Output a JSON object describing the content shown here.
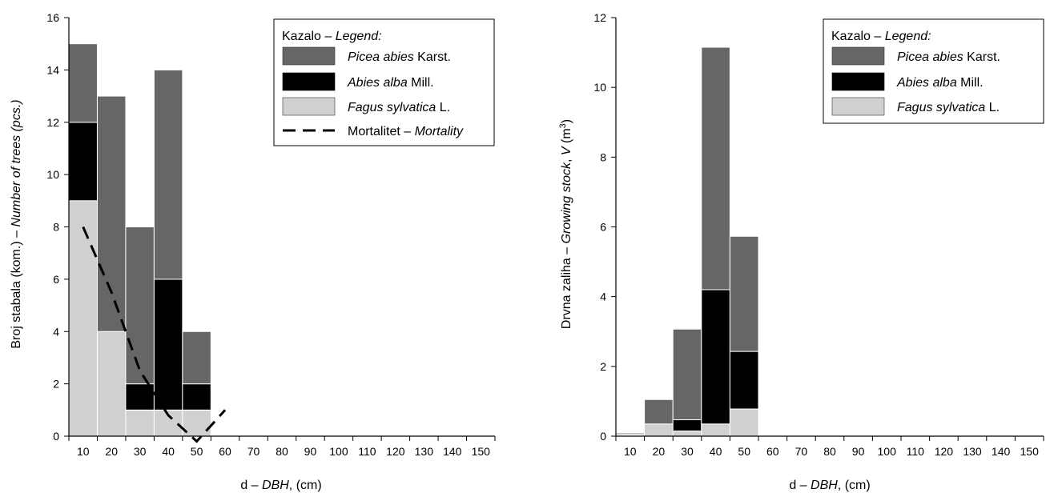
{
  "chart_data": [
    {
      "type": "bar",
      "stacked": true,
      "categories": [
        "10",
        "20",
        "30",
        "40",
        "50",
        "60",
        "70",
        "80",
        "90",
        "100",
        "110",
        "120",
        "130",
        "140",
        "150"
      ],
      "series": [
        {
          "name": "Fagus sylvatica L.",
          "color": "#d0d0d0",
          "values": [
            9,
            4,
            1,
            1,
            1,
            0,
            0,
            0,
            0,
            0,
            0,
            0,
            0,
            0,
            0
          ]
        },
        {
          "name": "Abies alba Mill.",
          "color": "#000000",
          "values": [
            3,
            0,
            1,
            5,
            1,
            0,
            0,
            0,
            0,
            0,
            0,
            0,
            0,
            0,
            0
          ]
        },
        {
          "name": "Picea abies Karst.",
          "color": "#666666",
          "values": [
            3,
            9,
            6,
            8,
            2,
            0,
            0,
            0,
            0,
            0,
            0,
            0,
            0,
            0,
            0
          ]
        }
      ],
      "mortality": {
        "name": "Mortalitet – Mortality",
        "x": [
          10,
          20,
          30,
          40,
          50,
          60
        ],
        "y": [
          8,
          5.5,
          2.5,
          0.8,
          -0.2,
          1
        ]
      },
      "xlabel_plain": "d – ",
      "xlabel_italic": "DBH",
      "xlabel_tail": ", (cm)",
      "ylabel_plain": "Broj stabala (kom.) – ",
      "ylabel_italic": "Number of trees (pcs.)",
      "ylim": [
        0,
        16
      ],
      "yticks": [
        0,
        2,
        4,
        6,
        8,
        10,
        12,
        14,
        16
      ],
      "legend_title_plain": "Kazalo – ",
      "legend_title_italic": "Legend:",
      "legend_position": "top-right",
      "legend_entries": [
        {
          "italic": "Picea abies",
          "plain": " Karst.",
          "color": "#666666"
        },
        {
          "italic": "Abies alba",
          "plain": " Mill.",
          "color": "#000000"
        },
        {
          "italic": "Fagus sylvatica",
          "plain": " L.",
          "color": "#d0d0d0"
        },
        {
          "plain_first": "Mortalitet – ",
          "italic": "Mortality",
          "line": true
        }
      ]
    },
    {
      "type": "bar",
      "stacked": true,
      "categories": [
        "10",
        "20",
        "30",
        "40",
        "50",
        "60",
        "70",
        "80",
        "90",
        "100",
        "110",
        "120",
        "130",
        "140",
        "150"
      ],
      "series": [
        {
          "name": "Fagus sylvatica L.",
          "color": "#d0d0d0",
          "values": [
            0.03,
            0.35,
            0.15,
            0.35,
            0.78,
            0,
            0,
            0,
            0,
            0,
            0,
            0,
            0,
            0,
            0
          ]
        },
        {
          "name": "Abies alba Mill.",
          "color": "#000000",
          "values": [
            0.02,
            0,
            0.32,
            3.85,
            1.65,
            0,
            0,
            0,
            0,
            0,
            0,
            0,
            0,
            0,
            0
          ]
        },
        {
          "name": "Picea abies Karst.",
          "color": "#666666",
          "values": [
            0.04,
            0.7,
            2.6,
            6.95,
            3.3,
            0,
            0,
            0,
            0,
            0,
            0,
            0,
            0,
            0,
            0
          ]
        }
      ],
      "xlabel_plain": "d – ",
      "xlabel_italic": "DBH",
      "xlabel_tail": ", (cm)",
      "ylabel_plain": "Drvna zaliha – ",
      "ylabel_italic": "Growing stock",
      "ylabel_tail": ", ",
      "ylabel_italic2": "V",
      "ylabel_unit": " (m",
      "ylabel_sup": "3",
      "ylabel_close": ")",
      "ylim": [
        0,
        12
      ],
      "yticks": [
        0,
        2,
        4,
        6,
        8,
        10,
        12
      ],
      "legend_title_plain": "Kazalo – ",
      "legend_title_italic": "Legend:",
      "legend_position": "top-right",
      "legend_entries": [
        {
          "italic": "Picea abies",
          "plain": " Karst.",
          "color": "#666666"
        },
        {
          "italic": "Abies alba",
          "plain": " Mill.",
          "color": "#000000"
        },
        {
          "italic": "Fagus sylvatica",
          "plain": " L.",
          "color": "#d0d0d0"
        }
      ]
    }
  ]
}
